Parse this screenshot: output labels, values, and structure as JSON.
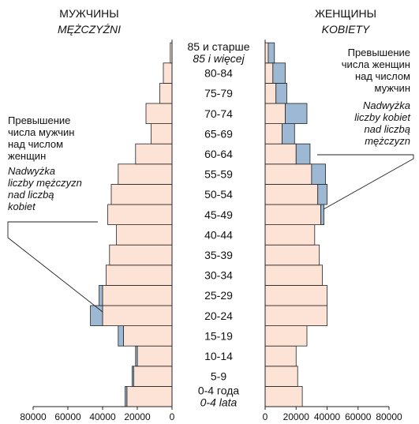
{
  "chart_data": {
    "type": "bar",
    "orientation": "horizontal-population-pyramid",
    "headers": {
      "left_ru": "МУЖЧИНЫ",
      "left_pl": "MĘŻCZYŹNI",
      "right_ru": "ЖЕНЩИНЫ",
      "right_pl": "KOBIETY"
    },
    "age_groups": [
      {
        "ru": "0-4 года",
        "pl": "0-4 lata"
      },
      {
        "ru": "5-9"
      },
      {
        "ru": "10-14"
      },
      {
        "ru": "15-19"
      },
      {
        "ru": "20-24"
      },
      {
        "ru": "25-29"
      },
      {
        "ru": "30-34"
      },
      {
        "ru": "35-39"
      },
      {
        "ru": "40-44"
      },
      {
        "ru": "45-49"
      },
      {
        "ru": "50-54"
      },
      {
        "ru": "55-59"
      },
      {
        "ru": "60-64"
      },
      {
        "ru": "65-69"
      },
      {
        "ru": "70-74"
      },
      {
        "ru": "75-79"
      },
      {
        "ru": "80-84"
      },
      {
        "ru": "85 и старше",
        "pl": "85 i więcej"
      }
    ],
    "men": [
      26000,
      22000,
      20000,
      28000,
      40000,
      40000,
      38000,
      36000,
      32000,
      37000,
      35000,
      31000,
      21000,
      12000,
      15000,
      7000,
      5000,
      1000
    ],
    "women": [
      24000,
      21000,
      20000,
      27000,
      40000,
      40000,
      37000,
      35000,
      32000,
      36000,
      34000,
      30000,
      20000,
      11000,
      13000,
      7000,
      5000,
      2000
    ],
    "excess_men": [
      1000,
      1000,
      1000,
      3000,
      7000,
      2000,
      0,
      0,
      0,
      0,
      0,
      0,
      0,
      0,
      0,
      0,
      0,
      0
    ],
    "excess_women": [
      0,
      0,
      0,
      0,
      0,
      0,
      0,
      0,
      0,
      2000,
      6000,
      9000,
      9000,
      8000,
      14000,
      7000,
      8000,
      4000
    ],
    "men_axis_ticks": [
      "80000",
      "60000",
      "40000",
      "20000",
      "0"
    ],
    "women_axis_ticks": [
      "0",
      "20000",
      "40000",
      "60000",
      "80000"
    ],
    "xlim": [
      0,
      80000
    ],
    "colors": {
      "base": "#fde2d6",
      "excess": "#9cb8d3"
    },
    "annotations": {
      "left": {
        "ru_lines": [
          "Превышение",
          "числа мужчин",
          "над числом",
          "женщин"
        ],
        "pl_lines": [
          "Nadwyżka",
          "liczby mężczyzn",
          "nad liczbą",
          "kobiet"
        ]
      },
      "right": {
        "ru_lines": [
          "Превышение",
          "числа женщин",
          "над числом",
          "мужчин"
        ],
        "pl_lines": [
          "Nadwyżka",
          "liczby kobiet",
          "nad liczbą",
          "mężczyzn"
        ]
      }
    }
  }
}
